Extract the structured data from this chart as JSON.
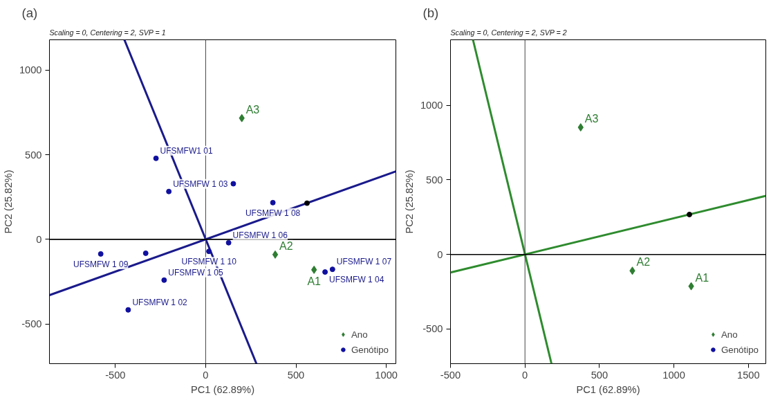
{
  "chart_data": [
    {
      "type": "scatter",
      "title": "(a)",
      "subtitle": "Scaling = 0, Centering = 2, SVP = 1",
      "xlabel": "PC1 (62.89%)",
      "ylabel": "PC2 (25.82%)",
      "xlim": [
        -865,
        1053
      ],
      "ylim": [
        -735,
        1180
      ],
      "xticks": [
        -500,
        0,
        500,
        1000
      ],
      "yticks": [
        -500,
        0,
        500,
        1000
      ],
      "grid": false,
      "legend": "bottom right",
      "ref_lines": [
        {
          "axis": "x",
          "value": 0,
          "color": "#444444"
        },
        {
          "axis": "y",
          "value": 0,
          "color": "#000000"
        }
      ],
      "series": [
        {
          "type": "line",
          "color": "#1a1a8c",
          "x": [
            -865,
            1053
          ],
          "values": [
            -330,
            402
          ]
        },
        {
          "type": "line",
          "color": "#1a1a8c",
          "x": [
            -450,
            281
          ],
          "values": [
            1180,
            -735
          ]
        },
        {
          "name": "Ano",
          "color": "#2e7d32",
          "marker": "diamond",
          "x": [
            600,
            385,
            200
          ],
          "values": [
            -180,
            -90,
            717
          ]
        },
        {
          "name": "Genótipo",
          "color": "#1010a0",
          "marker": "circle",
          "x": [
            -275,
            -429,
            -204,
            661,
            -230,
            127,
            702,
            372,
            -581,
            18,
            153,
            -332
          ],
          "values": [
            479,
            -417,
            283,
            -193,
            -241,
            -20,
            -177,
            217,
            -86,
            -71,
            329,
            -82
          ]
        },
        {
          "color": "#000000",
          "marker": "circle",
          "x": [
            561
          ],
          "values": [
            214
          ]
        }
      ],
      "annotations": [
        {
          "text": "A1",
          "x": 600,
          "y": -180
        },
        {
          "text": "A2",
          "x": 385,
          "y": -90
        },
        {
          "text": "A3",
          "x": 200,
          "y": 717
        },
        {
          "text": "UFSMFW1 01",
          "x": -275,
          "y": 479
        },
        {
          "text": "UFSMFW 1 02",
          "x": -429,
          "y": -417
        },
        {
          "text": "UFSMFW 1 03",
          "x": -204,
          "y": 283
        },
        {
          "text": "UFSMFW 1 04",
          "x": 661,
          "y": -193
        },
        {
          "text": "UFSMFW 1 05",
          "x": -230,
          "y": -241
        },
        {
          "text": "UFSMFW 1 06",
          "x": 127,
          "y": -20
        },
        {
          "text": "UFSMFW 1 07",
          "x": 702,
          "y": -177
        },
        {
          "text": "UFSMFW 1 08",
          "x": 372,
          "y": 217
        },
        {
          "text": "UFSMFW 1 09",
          "x": -581,
          "y": -86
        },
        {
          "text": "UFSMFW 1 10",
          "x": 18,
          "y": -71
        }
      ]
    },
    {
      "type": "scatter",
      "title": "(b)",
      "subtitle": "Scaling = 0, Centering = 2, SVP = 2",
      "xlabel": "PC1 (62.89%)",
      "ylabel": "PC2 (25.82%)",
      "xlim": [
        -500,
        1617
      ],
      "ylim": [
        -732,
        1439
      ],
      "xticks": [
        -500,
        0,
        500,
        1000,
        1500
      ],
      "yticks": [
        -500,
        0,
        500,
        1000
      ],
      "grid": false,
      "legend": "bottom right",
      "ref_lines": [
        {
          "axis": "x",
          "value": 0,
          "color": "#444444"
        },
        {
          "axis": "y",
          "value": 0,
          "color": "#000000"
        }
      ],
      "series": [
        {
          "type": "line",
          "color": "#2e8b2e",
          "x": [
            -500,
            1617
          ],
          "values": [
            -121,
            393
          ]
        },
        {
          "type": "line",
          "color": "#2e8b2e",
          "x": [
            -349,
            178
          ],
          "values": [
            1439,
            -732
          ]
        },
        {
          "name": "Ano",
          "color": "#2e7d32",
          "marker": "diamond",
          "x": [
            1116,
            721,
            374
          ],
          "values": [
            -213,
            -109,
            852
          ]
        },
        {
          "name": "Genótipo",
          "color": "#1010a0",
          "marker": "circle"
        },
        {
          "color": "#000000",
          "marker": "circle",
          "x": [
            1104
          ],
          "values": [
            268
          ]
        }
      ],
      "annotations": [
        {
          "text": "A1",
          "x": 1116,
          "y": -213
        },
        {
          "text": "A2",
          "x": 721,
          "y": -109
        },
        {
          "text": "A3",
          "x": 374,
          "y": 852
        }
      ]
    }
  ]
}
